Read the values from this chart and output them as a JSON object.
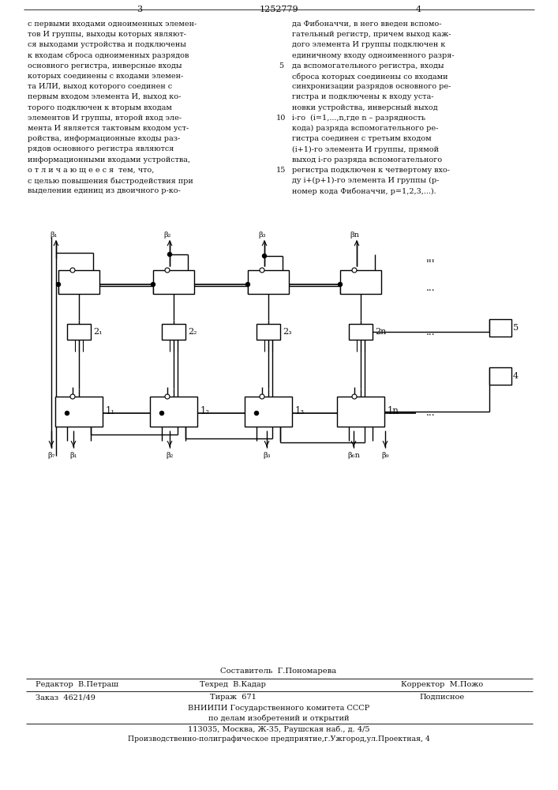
{
  "page_number_left": "3",
  "patent_number": "1252779",
  "page_number_right": "4",
  "col_left_text": [
    "с первыми входами одноименных элемен-",
    "тов И группы, выходы которых являют-",
    "ся выходами устройства и подключены",
    "к входам сброса одноименных разрядов",
    "основного регистра, инверсные входы",
    "которых соединены с входами элемен-",
    "та ИЛИ, выход которого соединен с",
    "первым входом элемента И, выход ко-",
    "торого подключен к вторым входам",
    "элементов И группы, второй вход эле-",
    "мента И является тактовым входом уст-",
    "ройства, информационные входы раз-",
    "рядов основного регистра являются",
    "информационными входами устройства,",
    "о т л и ч а ю щ е е с я  тем, что,",
    "с целью повышения быстродействия при",
    "выделении единиц из двоичного р-ко-"
  ],
  "col_right_text": [
    "да Фибоначчи, в него введен вспомо-",
    "гательный регистр, причем выход каж-",
    "дого элемента И группы подключен к",
    "единичному входу одноименного разря-",
    "да вспомогательного регистра, входы",
    "сброса которых соединены со входами",
    "синхронизации разрядов основного ре-",
    "гистра и подключены к входу уста-",
    "новки устройства, инверсный выход",
    "i-го  (i=1,...,n,где n – разрядность",
    "кода) разряда вспомогательного ре-",
    "гистра соединен с третьим входом",
    "(i+1)-го элемента И группы, прямой",
    "выход i-го разряда вспомогательного",
    "регистра подключен к четвертому вхо-",
    "ду i+(p+1)-го элемента И группы (р-",
    "номер кода Фибоначчи, р=1,2,3,...)."
  ],
  "line_nums": {
    "4": "5",
    "9": "10",
    "14": "15"
  },
  "footer_sestavitel": "Составитель  Г.Пономарева",
  "footer_editor": "Редактор  В.Петраш",
  "footer_tekhred": "Техред  В.Кадар",
  "footer_korrektor": "Корректор  М.Пожо",
  "footer_zakaz": "Заказ  4621/49",
  "footer_tirazh": "Тираж  671",
  "footer_podpisnoe": "Подписное",
  "footer_vniiipi": "ВНИИПИ Государственного комитета СССР",
  "footer_po_delam": "по делам изобретений и открытий",
  "footer_address": "113035, Москва, Ж-35, Раушская наб., д. 4/5",
  "footer_predpriyatie": "Производственно-полиграфическое предприятие,г.Ужгород,ул.Проектная, 4",
  "bg_color": "#ffffff"
}
